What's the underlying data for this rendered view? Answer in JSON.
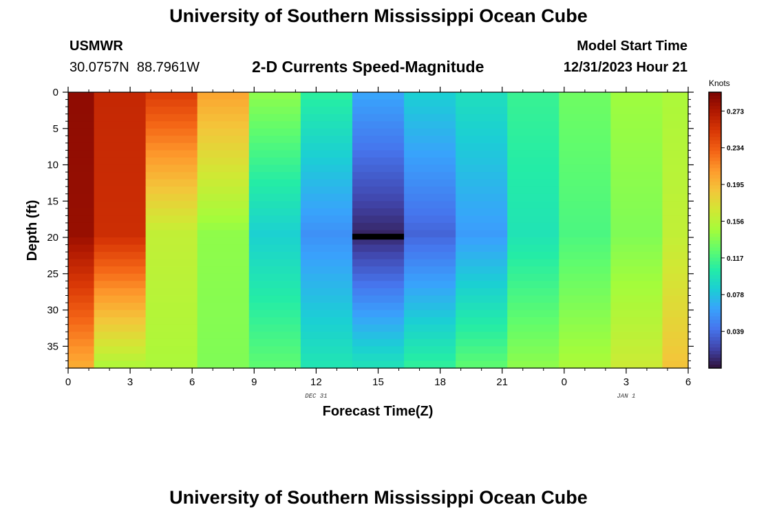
{
  "page": {
    "title_top": "University of Southern Mississippi Ocean Cube",
    "title_bottom": "University of Southern Mississippi Ocean Cube",
    "station": "USMWR",
    "coordinates": "30.0757N  88.7961W",
    "chart_title": "2-D Currents Speed-Magnitude",
    "model_start_label": "Model Start Time",
    "model_start_value": "12/31/2023 Hour 21"
  },
  "chart_data": {
    "type": "heatmap",
    "title": "2-D Currents Speed-Magnitude",
    "xlabel": "Forecast Time(Z)",
    "ylabel": "Depth (ft)",
    "x_tick_labels": [
      "0",
      "3",
      "6",
      "9",
      "12",
      "15",
      "18",
      "21",
      "0",
      "3",
      "6"
    ],
    "x_date_labels": [
      {
        "text": "DEC 31",
        "at_hour": 12
      },
      {
        "text": "JAN 1",
        "at_hour": 27
      }
    ],
    "x_range_hours": [
      0,
      30
    ],
    "y_ticks": [
      0,
      5,
      10,
      15,
      20,
      25,
      30,
      35
    ],
    "y_range": [
      0,
      38
    ],
    "y_inverted": true,
    "colorbar": {
      "unit": "Knots",
      "range": [
        0.0,
        0.293
      ],
      "ticks": [
        0.039,
        0.078,
        0.117,
        0.156,
        0.195,
        0.234,
        0.273
      ],
      "colors": [
        "#30123b",
        "#4145ab",
        "#4675ed",
        "#39a2fc",
        "#1bcfd4",
        "#24eca6",
        "#61fc6c",
        "#a4fc3b",
        "#d1e834",
        "#f3c63a",
        "#fe9b2d",
        "#f36315",
        "#d93806",
        "#b11901",
        "#7a0402"
      ]
    },
    "columns": [
      {
        "x0": 0,
        "x1": 1.25,
        "top": 0.285,
        "mid": 0.282,
        "bottom": 0.2
      },
      {
        "x0": 1.25,
        "x1": 3.75,
        "top": 0.262,
        "mid": 0.258,
        "bottom": 0.15
      },
      {
        "x0": 3.75,
        "x1": 6.25,
        "top": 0.25,
        "mid": 0.16,
        "bottom": 0.15
      },
      {
        "x0": 6.25,
        "x1": 8.75,
        "top": 0.205,
        "mid": 0.14,
        "bottom": 0.135
      },
      {
        "x0": 8.75,
        "x1": 11.25,
        "top": 0.14,
        "mid": 0.085,
        "bottom": 0.125
      },
      {
        "x0": 11.25,
        "x1": 13.75,
        "top": 0.108,
        "mid": 0.055,
        "bottom": 0.1
      },
      {
        "x0": 13.75,
        "x1": 16.25,
        "top": 0.065,
        "mid": 0.008,
        "bottom": 0.098
      },
      {
        "x0": 16.25,
        "x1": 18.75,
        "top": 0.085,
        "mid": 0.035,
        "bottom": 0.11
      },
      {
        "x0": 18.75,
        "x1": 21.25,
        "top": 0.095,
        "mid": 0.06,
        "bottom": 0.125
      },
      {
        "x0": 21.25,
        "x1": 23.75,
        "top": 0.112,
        "mid": 0.098,
        "bottom": 0.14
      },
      {
        "x0": 23.75,
        "x1": 26.25,
        "top": 0.13,
        "mid": 0.118,
        "bottom": 0.15
      },
      {
        "x0": 26.25,
        "x1": 28.75,
        "top": 0.145,
        "mid": 0.135,
        "bottom": 0.165
      },
      {
        "x0": 28.75,
        "x1": 30,
        "top": 0.15,
        "mid": 0.16,
        "bottom": 0.19
      }
    ],
    "missing_segment": {
      "x0": 13.75,
      "x1": 16.25,
      "depth0": 19.5,
      "depth1": 20.3
    }
  }
}
